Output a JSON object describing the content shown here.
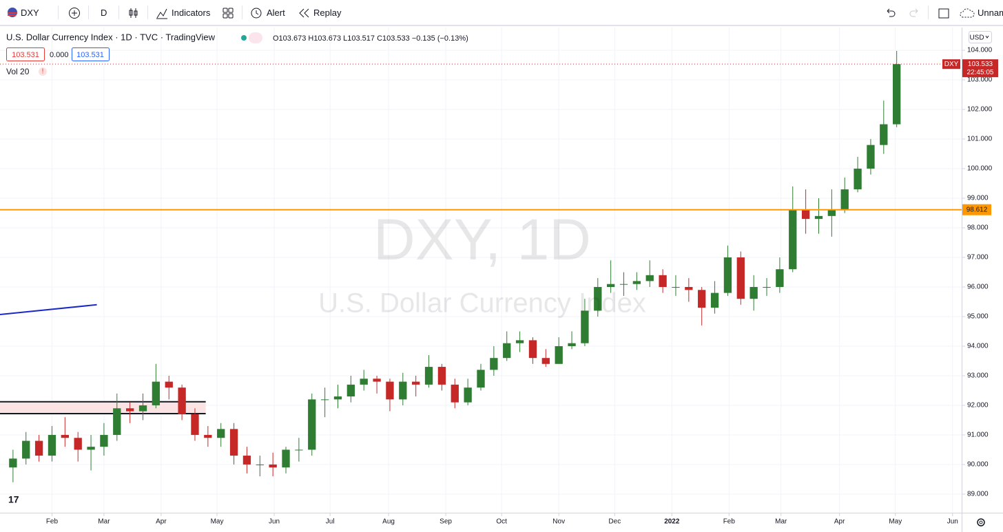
{
  "toolbar": {
    "symbol": "DXY",
    "interval": "D",
    "indicators": "Indicators",
    "alert": "Alert",
    "replay": "Replay",
    "layout": "Unnam"
  },
  "legend": {
    "title": "U.S. Dollar Currency Index · 1D · TVC · TradingView",
    "ohlc": "O103.673 H103.673 L103.517 C103.533 −0.135 (−0.13%)",
    "bid": "103.531",
    "spread": "0.000",
    "ask": "103.531",
    "volume": "Vol 20"
  },
  "chart_data": {
    "type": "candlestick",
    "watermark": "DXY, 1D",
    "watermark_subtitle": "U.S. Dollar Currency Index",
    "currency": "USD",
    "up_color": "#2e7d32",
    "down_color": "#c62828",
    "x": [
      -3,
      -2,
      -1,
      0,
      1,
      2,
      3,
      4,
      5,
      6,
      7,
      8,
      9,
      10,
      11,
      12,
      13,
      14,
      15,
      16,
      17,
      18,
      19,
      20,
      21,
      22,
      23,
      24,
      25,
      26,
      27,
      28,
      29,
      30,
      31,
      32,
      33,
      34,
      35,
      36,
      37,
      38,
      39,
      40,
      41,
      42,
      43,
      44,
      45,
      46,
      47,
      48,
      49,
      50,
      51,
      52,
      53,
      54,
      55,
      56,
      57,
      58,
      59,
      60,
      61,
      62,
      63,
      64,
      65
    ],
    "open": [
      89.9,
      90.2,
      90.8,
      90.3,
      91.0,
      90.9,
      90.5,
      90.6,
      91.0,
      91.9,
      91.8,
      92.0,
      92.8,
      92.6,
      91.7,
      91.0,
      90.9,
      91.2,
      90.3,
      90.0,
      90.0,
      89.9,
      90.5,
      90.5,
      92.2,
      92.2,
      92.3,
      92.7,
      92.9,
      92.8,
      92.2,
      92.8,
      92.7,
      93.3,
      92.7,
      92.1,
      92.6,
      93.2,
      93.6,
      94.1,
      94.2,
      93.6,
      93.4,
      94.0,
      94.1,
      95.2,
      96.0,
      96.1,
      96.1,
      96.2,
      96.4,
      96.0,
      96.0,
      95.9,
      95.3,
      95.8,
      97.0,
      95.6,
      96.0,
      96.0,
      96.6,
      98.6,
      98.3,
      98.4,
      98.6,
      99.3,
      100.0,
      100.8,
      101.5
    ],
    "high": [
      90.5,
      91.1,
      91.0,
      91.3,
      91.6,
      91.1,
      91.0,
      91.4,
      92.4,
      92.1,
      92.4,
      93.4,
      93.0,
      92.7,
      91.9,
      91.3,
      91.4,
      91.4,
      90.6,
      90.3,
      90.4,
      90.6,
      90.9,
      92.4,
      92.6,
      92.7,
      93.0,
      93.2,
      93.0,
      92.9,
      93.1,
      93.0,
      93.7,
      93.4,
      92.9,
      92.9,
      93.4,
      94.0,
      94.5,
      94.5,
      94.3,
      93.9,
      94.3,
      94.5,
      95.6,
      96.3,
      96.9,
      96.5,
      96.5,
      96.9,
      96.6,
      96.4,
      96.3,
      96.0,
      96.2,
      97.4,
      97.2,
      96.4,
      96.3,
      97.0,
      99.4,
      99.3,
      99.0,
      99.3,
      99.7,
      100.4,
      101.0,
      102.3,
      103.98
    ],
    "low": [
      89.4,
      90.0,
      90.1,
      90.1,
      90.6,
      90.1,
      89.8,
      90.3,
      90.8,
      91.4,
      91.5,
      91.9,
      92.2,
      91.5,
      90.8,
      90.6,
      90.6,
      90.0,
      89.7,
      89.6,
      89.6,
      89.7,
      90.1,
      90.3,
      91.6,
      91.9,
      92.1,
      92.5,
      92.4,
      91.8,
      92.0,
      92.3,
      92.6,
      92.5,
      91.9,
      92.0,
      92.5,
      93.0,
      93.5,
      93.8,
      93.4,
      93.3,
      93.4,
      93.9,
      94.0,
      95.0,
      95.8,
      95.7,
      95.9,
      96.0,
      95.8,
      95.7,
      95.5,
      94.7,
      95.1,
      95.7,
      95.4,
      95.2,
      95.7,
      95.8,
      96.5,
      97.8,
      97.8,
      97.7,
      98.5,
      99.2,
      99.8,
      100.5,
      101.4
    ],
    "close": [
      90.2,
      90.8,
      90.3,
      91.0,
      90.9,
      90.5,
      90.6,
      91.0,
      91.9,
      91.8,
      92.0,
      92.8,
      92.6,
      91.7,
      91.0,
      90.9,
      91.2,
      90.3,
      90.0,
      90.0,
      89.9,
      90.5,
      90.5,
      92.2,
      92.2,
      92.3,
      92.7,
      92.9,
      92.8,
      92.2,
      92.8,
      92.7,
      93.3,
      92.7,
      92.1,
      92.6,
      93.2,
      93.6,
      94.1,
      94.2,
      93.6,
      93.4,
      94.0,
      94.1,
      95.2,
      96.0,
      96.1,
      96.1,
      96.2,
      96.4,
      96.0,
      96.0,
      95.9,
      95.3,
      95.8,
      97.0,
      95.6,
      96.0,
      96.0,
      96.6,
      98.6,
      98.3,
      98.4,
      98.6,
      99.3,
      100.0,
      100.8,
      101.5,
      103.533
    ],
    "xlim": [
      -4,
      70
    ],
    "xticks": [
      {
        "value": 0,
        "label": "Feb"
      },
      {
        "value": 4,
        "label": "Mar"
      },
      {
        "value": 8.4,
        "label": "Apr"
      },
      {
        "value": 12.7,
        "label": "May"
      },
      {
        "value": 17.1,
        "label": "Jun"
      },
      {
        "value": 21.4,
        "label": "Jul"
      },
      {
        "value": 25.9,
        "label": "Aug"
      },
      {
        "value": 30.3,
        "label": "Sep"
      },
      {
        "value": 34.6,
        "label": "Oct"
      },
      {
        "value": 39,
        "label": "Nov"
      },
      {
        "value": 43.3,
        "label": "Dec"
      },
      {
        "value": 47.7,
        "label": "2022"
      },
      {
        "value": 52.1,
        "label": "Feb"
      },
      {
        "value": 56.1,
        "label": "Mar"
      },
      {
        "value": 60.6,
        "label": "Apr"
      },
      {
        "value": 64.9,
        "label": "May"
      },
      {
        "value": 69.3,
        "label": "Jun"
      }
    ],
    "ylim": [
      88.37,
      104.77
    ],
    "yticks": [
      {
        "value": 89,
        "label": "89.000"
      },
      {
        "value": 90,
        "label": "90.000"
      },
      {
        "value": 91,
        "label": "91.000"
      },
      {
        "value": 92,
        "label": "92.000"
      },
      {
        "value": 93,
        "label": "93.000"
      },
      {
        "value": 94,
        "label": "94.000"
      },
      {
        "value": 95,
        "label": "95.000"
      },
      {
        "value": 96,
        "label": "96.000"
      },
      {
        "value": 97,
        "label": "97.000"
      },
      {
        "value": 98,
        "label": "98.000"
      },
      {
        "value": 99,
        "label": "99.000"
      },
      {
        "value": 100,
        "label": "100.000"
      },
      {
        "value": 101,
        "label": "101.000"
      },
      {
        "value": 102,
        "label": "102.000"
      },
      {
        "value": 103,
        "label": "103.000"
      },
      {
        "value": 104,
        "label": "104.000"
      }
    ],
    "grid": true,
    "last_price": {
      "value": 103.533,
      "symbol": "DXY",
      "countdown": "22:45:05",
      "color": "#c62828"
    },
    "hline": {
      "value": 98.612,
      "color": "#ff9800"
    },
    "zone": {
      "low": 91.72,
      "high": 92.12,
      "x": [
        -4,
        11.83
      ],
      "color": "#fbe3e3"
    },
    "trendline": {
      "x": [
        -4,
        3.45
      ],
      "y": [
        95.07,
        95.4
      ],
      "color": "#1a28c8"
    }
  }
}
